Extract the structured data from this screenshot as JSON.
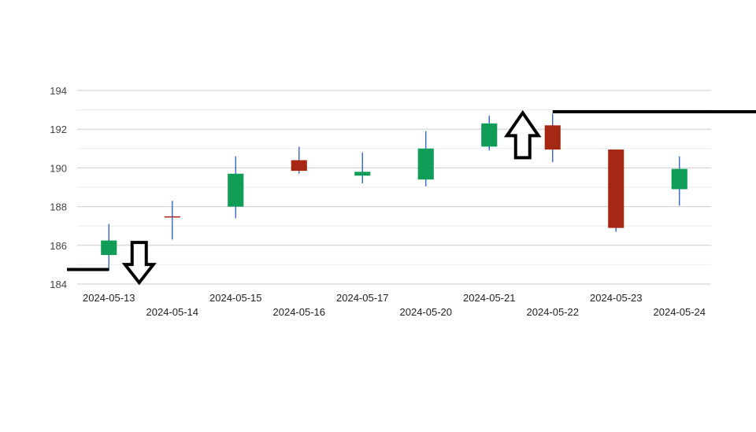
{
  "chart_data": {
    "type": "candlestick",
    "x": [
      "2024-05-13",
      "2024-05-14",
      "2024-05-15",
      "2024-05-16",
      "2024-05-17",
      "2024-05-20",
      "2024-05-21",
      "2024-05-22",
      "2024-05-23",
      "2024-05-24"
    ],
    "series": [
      {
        "open": [
          185.5,
          187.5,
          188.0,
          190.4,
          189.6,
          189.4,
          191.1,
          192.2,
          190.95,
          188.9
        ],
        "high": [
          187.1,
          188.3,
          190.6,
          191.1,
          190.8,
          191.9,
          192.7,
          192.8,
          190.95,
          190.6
        ],
        "low": [
          184.7,
          186.3,
          187.4,
          189.7,
          189.2,
          189.05,
          190.9,
          190.3,
          186.7,
          188.05
        ],
        "close": [
          186.25,
          187.45,
          189.7,
          189.85,
          189.8,
          191.0,
          192.3,
          190.95,
          186.9,
          189.95
        ]
      }
    ],
    "ylim": [
      184,
      194
    ],
    "yticks": [
      "184",
      "186",
      "188",
      "190",
      "192",
      "194"
    ],
    "grid": true,
    "colors": {
      "up": "#0f9d58",
      "down": "#a52714",
      "wick": "#3366cc"
    },
    "annotations": [
      {
        "type": "horizontal-line",
        "y": 184.75,
        "x_range": [
          "",
          "2024-05-13"
        ]
      },
      {
        "type": "arrow",
        "direction": "down",
        "near": "2024-05-14",
        "y": 185.7
      },
      {
        "type": "horizontal-line",
        "y": 192.9,
        "x_range": [
          "2024-05-22",
          ""
        ]
      },
      {
        "type": "arrow",
        "direction": "up",
        "near": "2024-05-22",
        "y": 191.1
      }
    ]
  }
}
